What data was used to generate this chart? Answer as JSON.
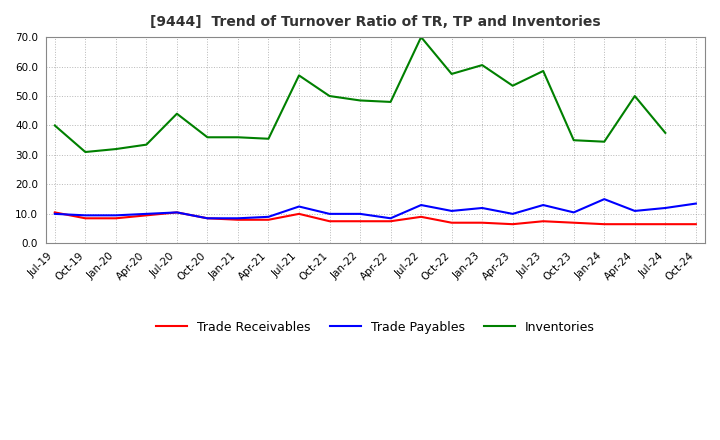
{
  "title": "[9444]  Trend of Turnover Ratio of TR, TP and Inventories",
  "x_labels": [
    "Jul-19",
    "Oct-19",
    "Jan-20",
    "Apr-20",
    "Jul-20",
    "Oct-20",
    "Jan-21",
    "Apr-21",
    "Jul-21",
    "Oct-21",
    "Jan-22",
    "Apr-22",
    "Jul-22",
    "Oct-22",
    "Jan-23",
    "Apr-23",
    "Jul-23",
    "Oct-23",
    "Jan-24",
    "Apr-24",
    "Jul-24",
    "Oct-24"
  ],
  "trade_receivables": [
    10.5,
    8.5,
    8.5,
    9.5,
    10.5,
    8.5,
    8.0,
    8.0,
    10.0,
    7.5,
    7.5,
    7.5,
    9.0,
    7.0,
    7.0,
    6.5,
    7.5,
    7.0,
    6.5,
    6.5,
    6.5,
    6.5
  ],
  "trade_payables": [
    10.0,
    9.5,
    9.5,
    10.0,
    10.5,
    8.5,
    8.5,
    9.0,
    12.5,
    10.0,
    10.0,
    8.5,
    13.0,
    11.0,
    12.0,
    10.0,
    13.0,
    10.5,
    15.0,
    11.0,
    12.0,
    13.5
  ],
  "inventories": [
    40.0,
    31.0,
    32.0,
    33.5,
    44.0,
    36.0,
    36.0,
    35.5,
    57.0,
    50.0,
    48.5,
    48.0,
    70.0,
    57.5,
    60.5,
    53.5,
    58.5,
    35.0,
    34.5,
    50.0,
    37.5,
    null
  ],
  "ylim": [
    0.0,
    70.0
  ],
  "yticks": [
    0.0,
    10.0,
    20.0,
    30.0,
    40.0,
    50.0,
    60.0,
    70.0
  ],
  "tr_color": "#ff0000",
  "tp_color": "#0000ff",
  "inv_color": "#008000",
  "legend_labels": [
    "Trade Receivables",
    "Trade Payables",
    "Inventories"
  ],
  "background_color": "#ffffff",
  "grid_color": "#999999",
  "title_color": "#333333"
}
